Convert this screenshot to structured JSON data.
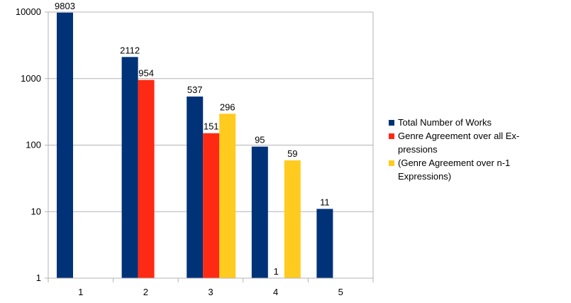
{
  "chart_data": {
    "type": "bar",
    "yscale": "log",
    "ylim": [
      1,
      10000
    ],
    "ytick_labels": [
      "1",
      "10",
      "100",
      "1000",
      "10000"
    ],
    "categories": [
      "1",
      "2",
      "3",
      "4",
      "5"
    ],
    "grid": true,
    "legend_position": "right",
    "series": [
      {
        "name": "Total Number of Works",
        "color": "#003278",
        "values": [
          9803,
          2112,
          537,
          95,
          11
        ],
        "labels": [
          "9803",
          "2112",
          "537",
          "95",
          "11"
        ]
      },
      {
        "name": "Genre Agreement over all Ex-\npressions",
        "legend_lines": [
          "Genre Agreement over all Ex-",
          "pressions"
        ],
        "color": "#ff2a14",
        "values": [
          null,
          954,
          151,
          1,
          null
        ],
        "labels": [
          null,
          "954",
          "151",
          "1",
          null
        ]
      },
      {
        "name": "(Genre Agreement over n-1\nExpressions)",
        "legend_lines": [
          "(Genre Agreement over n-1",
          "Expressions)"
        ],
        "color": "#ffcb1f",
        "values": [
          null,
          null,
          296,
          59,
          null
        ],
        "labels": [
          null,
          null,
          "296",
          "59",
          null
        ]
      }
    ]
  }
}
